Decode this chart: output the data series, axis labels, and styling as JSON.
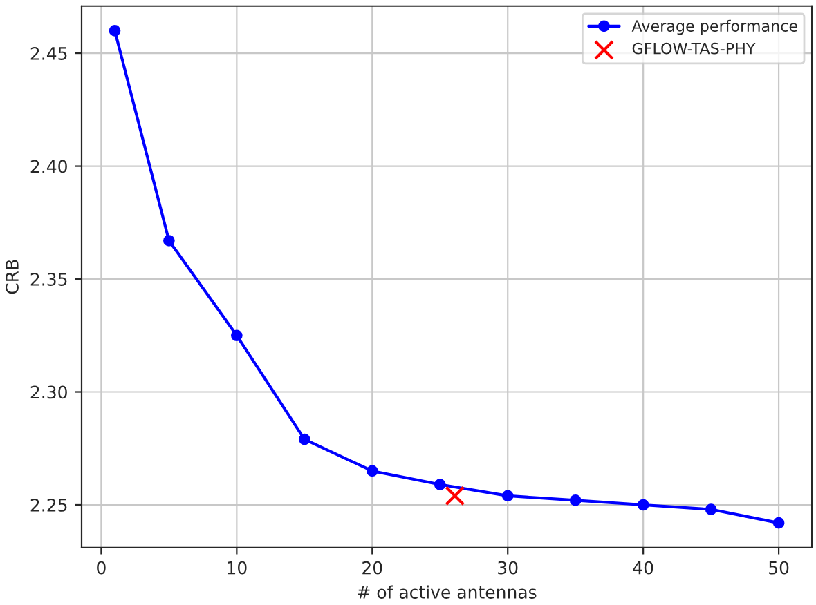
{
  "chart_data": {
    "type": "line",
    "xlabel": "# of active antennas",
    "ylabel": "CRB",
    "series": [
      {
        "name": "Average performance",
        "color": "#0000ff",
        "marker": "circle",
        "x": [
          1,
          5,
          10,
          15,
          20,
          25,
          30,
          35,
          40,
          45,
          50
        ],
        "values": [
          2.46,
          2.367,
          2.325,
          2.279,
          2.265,
          2.259,
          2.254,
          2.252,
          2.25,
          2.248,
          2.242
        ]
      },
      {
        "name": "GFLOW-TAS-PHY",
        "color": "#ff0000",
        "type": "scatter",
        "marker": "cross",
        "x": [
          26.1
        ],
        "values": [
          2.254
        ]
      }
    ],
    "xlim": [
      -1.45,
      52.45
    ],
    "ylim": [
      2.2311,
      2.4709
    ],
    "xticks": [
      0,
      10,
      20,
      30,
      40,
      50
    ],
    "yticks": [
      2.25,
      {
        "value": 2.3,
        "label": "2.30"
      },
      2.35,
      {
        "value": 2.4,
        "label": "2.40"
      },
      2.45
    ],
    "grid": true,
    "legend": "top right"
  }
}
